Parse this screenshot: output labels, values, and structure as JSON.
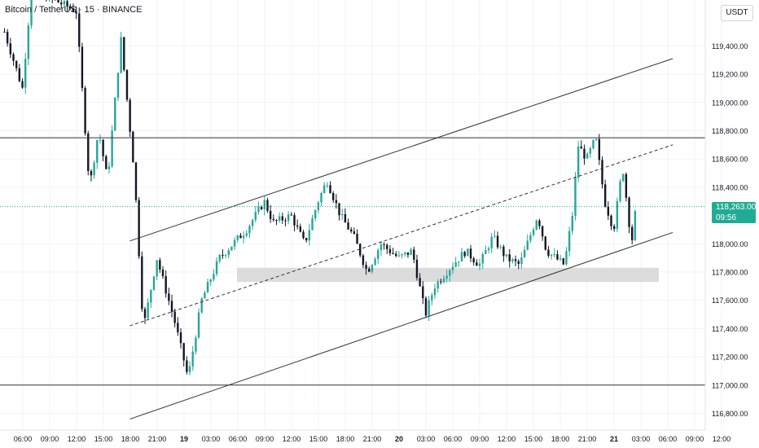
{
  "header": {
    "symbol_title": "Bitcoin / TetherUS · 15 · BINANCE",
    "currency": "USDT"
  },
  "price_scale": {
    "ticks": [
      "119,400.00",
      "119,200.00",
      "119,000.00",
      "118,800.00",
      "118,600.00",
      "118,400.00",
      "118,000.00",
      "117,800.00",
      "117,600.00",
      "117,400.00",
      "117,200.00",
      "117,000.00",
      "116,800.00"
    ],
    "tick_values": [
      119400,
      119200,
      119000,
      118800,
      118600,
      118400,
      118000,
      117800,
      117600,
      117400,
      117200,
      117000,
      116800
    ],
    "current_price": "118,263.00",
    "countdown": "09:56"
  },
  "time_axis": {
    "labels": [
      "06:00",
      "09:00",
      "12:00",
      "15:00",
      "18:00",
      "21:00",
      "19",
      "03:00",
      "06:00",
      "09:00",
      "12:00",
      "15:00",
      "18:00",
      "21:00",
      "20",
      "03:00",
      "06:00",
      "09:00",
      "12:00",
      "15:00",
      "18:00",
      "21:00",
      "21",
      "03:00",
      "06:00",
      "09:00",
      "12:00"
    ]
  },
  "colors": {
    "up": "#26a69a",
    "down": "#131722",
    "grid": "#f0f3fa",
    "line": "#333333",
    "zone": "#d6d6d6",
    "tag": "#22ab94"
  },
  "chart_data": {
    "type": "candlestick",
    "title": "Bitcoin / TetherUS · 15 · BINANCE",
    "ylim": [
      116720,
      119620
    ],
    "current_price": 118263,
    "horizontal_levels": [
      118750,
      117000
    ],
    "support_zone": {
      "from_time": "05:30 (19th)",
      "to_time": "~02:30 (21st)",
      "low": 117730,
      "high": 117830
    },
    "ascending_channel": {
      "upper": [
        [
          118020,
          "18:00 (18th)"
        ],
        [
          119310,
          "~02:30 (21st)"
        ]
      ],
      "middle_dashed": [
        [
          117420,
          "18:00 (18th)"
        ],
        [
          118700,
          "~02:30 (21st)"
        ]
      ],
      "lower": [
        [
          116760,
          "18:00 (18th)"
        ],
        [
          118080,
          "~02:30 (21st)"
        ]
      ]
    },
    "series_path": [
      {
        "t": "04:00 (18th)",
        "p": 119500
      },
      {
        "t": "06:00 (18th)",
        "p": 119100
      },
      {
        "t": "07:00 (18th)",
        "p": 119800
      },
      {
        "t": "12:00 (18th)",
        "p": 119650
      },
      {
        "t": "13:30 (18th)",
        "p": 118400
      },
      {
        "t": "14:30 (18th)",
        "p": 118800
      },
      {
        "t": "15:30 (18th)",
        "p": 118450
      },
      {
        "t": "17:00 (18th)",
        "p": 119450
      },
      {
        "t": "18:30 (18th)",
        "p": 118500
      },
      {
        "t": "19:30 (18th)",
        "p": 117400
      },
      {
        "t": "21:00 (18th)",
        "p": 117900
      },
      {
        "t": "23:00 (18th)",
        "p": 117450
      },
      {
        "t": "00:30 (19th)",
        "p": 117050
      },
      {
        "t": "02:00 (19th)",
        "p": 117600
      },
      {
        "t": "04:00 (19th)",
        "p": 117900
      },
      {
        "t": "07:00 (19th)",
        "p": 118100
      },
      {
        "t": "09:00 (19th)",
        "p": 118300
      },
      {
        "t": "10:00 (19th)",
        "p": 118150
      },
      {
        "t": "12:00 (19th)",
        "p": 118200
      },
      {
        "t": "13:30 (19th)",
        "p": 118000
      },
      {
        "t": "15:00 (19th)",
        "p": 118300
      },
      {
        "t": "16:00 (19th)",
        "p": 118450
      },
      {
        "t": "17:30 (19th)",
        "p": 118200
      },
      {
        "t": "19:00 (19th)",
        "p": 118050
      },
      {
        "t": "20:30 (19th)",
        "p": 117800
      },
      {
        "t": "22:00 (19th)",
        "p": 118000
      },
      {
        "t": "00:00 (20th)",
        "p": 117900
      },
      {
        "t": "01:30 (20th)",
        "p": 117950
      },
      {
        "t": "03:00 (20th)",
        "p": 117500
      },
      {
        "t": "04:00 (20th)",
        "p": 117700
      },
      {
        "t": "06:00 (20th)",
        "p": 117850
      },
      {
        "t": "07:30 (20th)",
        "p": 117950
      },
      {
        "t": "09:00 (20th)",
        "p": 117850
      },
      {
        "t": "10:30 (20th)",
        "p": 118050
      },
      {
        "t": "12:00 (20th)",
        "p": 117900
      },
      {
        "t": "13:30 (20th)",
        "p": 117850
      },
      {
        "t": "15:30 (20th)",
        "p": 118200
      },
      {
        "t": "16:30 (20th)",
        "p": 117950
      },
      {
        "t": "18:30 (20th)",
        "p": 117850
      },
      {
        "t": "19:30 (20th)",
        "p": 118250
      },
      {
        "t": "20:00 (20th)",
        "p": 118700
      },
      {
        "t": "21:00 (20th)",
        "p": 118600
      },
      {
        "t": "22:00 (20th)",
        "p": 118750
      },
      {
        "t": "23:00 (20th)",
        "p": 118300
      },
      {
        "t": "00:00 (21st)",
        "p": 118100
      },
      {
        "t": "01:00 (21st)",
        "p": 118550
      },
      {
        "t": "02:00 (21st)",
        "p": 118000
      },
      {
        "t": "02:30 (21st)",
        "p": 118263
      }
    ]
  }
}
